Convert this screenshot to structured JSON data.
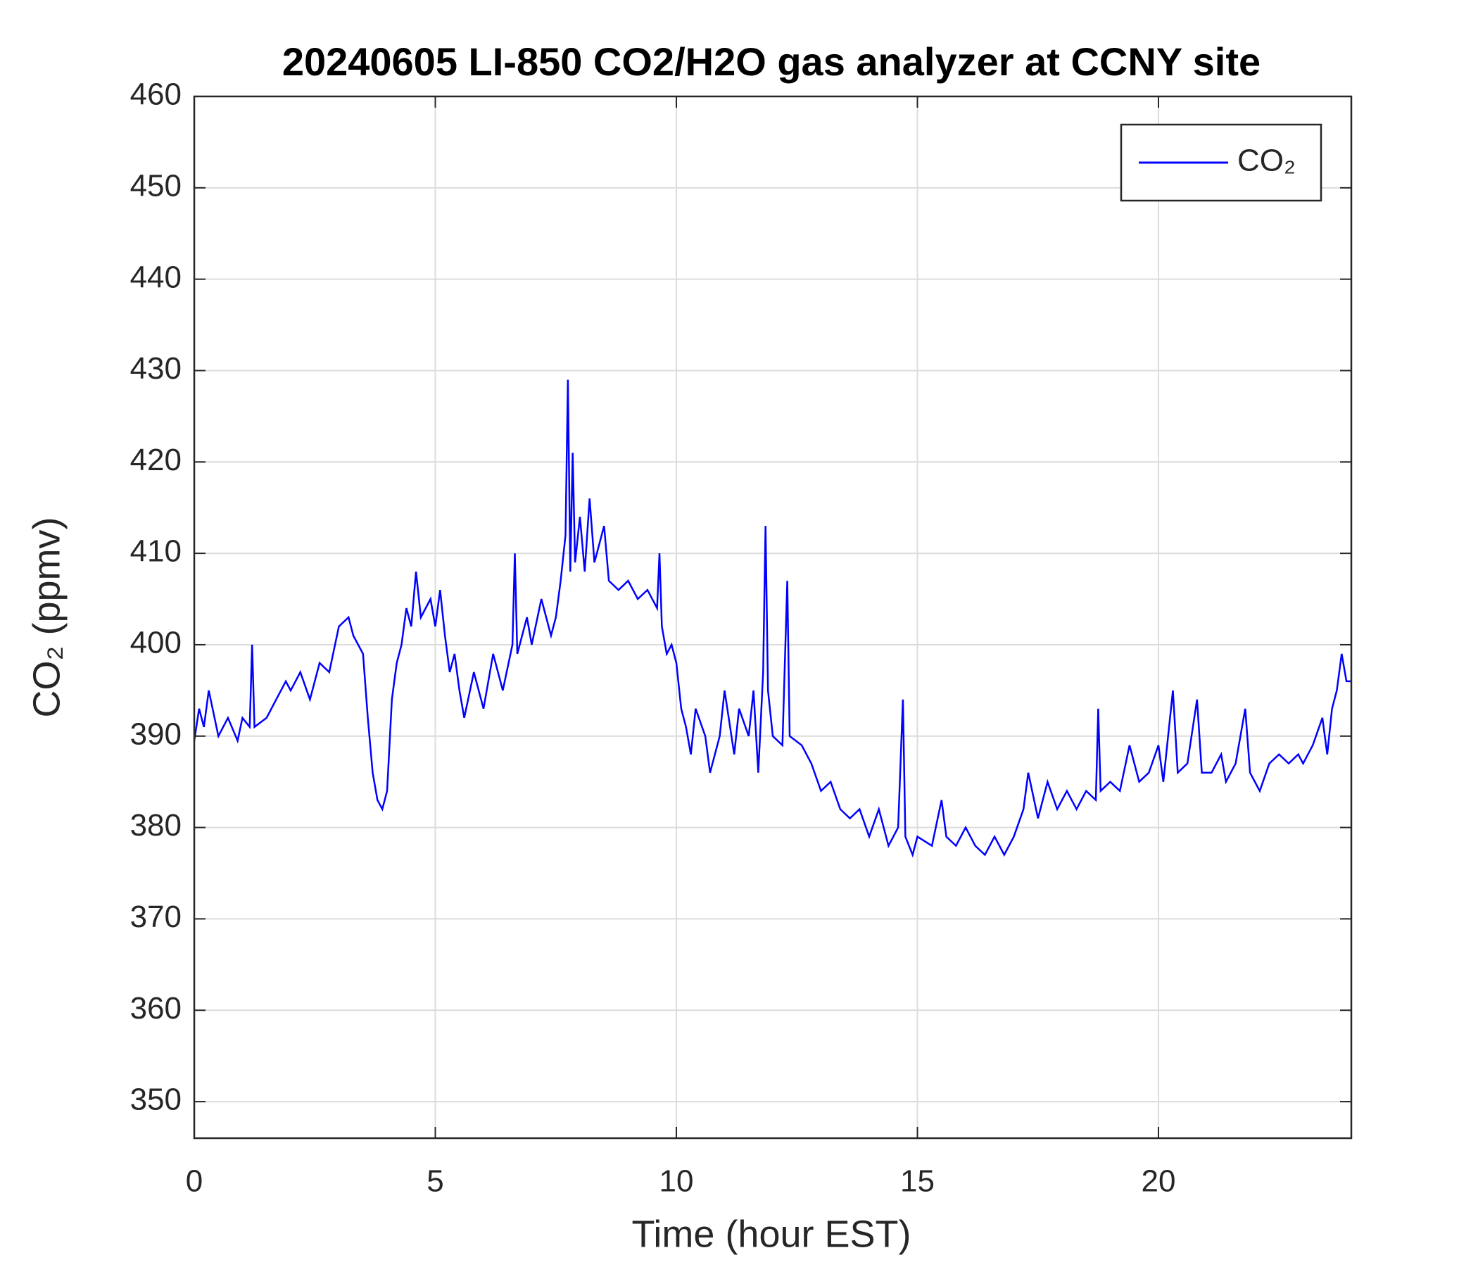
{
  "chart_data": {
    "type": "line",
    "title": "20240605 LI-850 CO2/H2O gas analyzer at CCNY site",
    "x_label": "Time (hour EST)",
    "y_label": "CO₂ (ppmv)",
    "xlim": [
      0,
      24
    ],
    "xticks": [
      0,
      5,
      10,
      15,
      20
    ],
    "ylim": [
      346,
      460
    ],
    "yticks": [
      350,
      360,
      370,
      380,
      390,
      400,
      410,
      420,
      430,
      440,
      450,
      460
    ],
    "grid": true,
    "legend": "upper right",
    "series": [
      {
        "name": "CO₂",
        "color": "#0000ff",
        "x": [
          0,
          0.1,
          0.2,
          0.3,
          0.5,
          0.7,
          0.9,
          1.0,
          1.15,
          1.2,
          1.25,
          1.5,
          1.7,
          1.9,
          2.0,
          2.2,
          2.4,
          2.6,
          2.8,
          3.0,
          3.2,
          3.3,
          3.5,
          3.6,
          3.7,
          3.8,
          3.9,
          4.0,
          4.1,
          4.2,
          4.3,
          4.4,
          4.5,
          4.6,
          4.7,
          4.9,
          5.0,
          5.1,
          5.2,
          5.3,
          5.4,
          5.5,
          5.6,
          5.8,
          6.0,
          6.2,
          6.4,
          6.6,
          6.65,
          6.7,
          6.9,
          7.0,
          7.2,
          7.4,
          7.5,
          7.6,
          7.7,
          7.75,
          7.8,
          7.85,
          7.9,
          8.0,
          8.1,
          8.2,
          8.3,
          8.5,
          8.6,
          8.8,
          9.0,
          9.2,
          9.4,
          9.6,
          9.65,
          9.7,
          9.8,
          9.9,
          10.0,
          10.1,
          10.2,
          10.3,
          10.4,
          10.6,
          10.7,
          10.9,
          11.0,
          11.2,
          11.3,
          11.5,
          11.6,
          11.7,
          11.8,
          11.85,
          11.9,
          12.0,
          12.2,
          12.3,
          12.35,
          12.6,
          12.8,
          13.0,
          13.2,
          13.4,
          13.6,
          13.8,
          14.0,
          14.2,
          14.4,
          14.6,
          14.7,
          14.75,
          14.9,
          15.0,
          15.3,
          15.5,
          15.6,
          15.8,
          16.0,
          16.2,
          16.4,
          16.6,
          16.8,
          17.0,
          17.2,
          17.3,
          17.5,
          17.7,
          17.9,
          18.1,
          18.3,
          18.5,
          18.7,
          18.75,
          18.8,
          19.0,
          19.2,
          19.4,
          19.6,
          19.8,
          20.0,
          20.1,
          20.3,
          20.4,
          20.6,
          20.8,
          20.9,
          21.1,
          21.3,
          21.4,
          21.6,
          21.8,
          21.9,
          22.1,
          22.3,
          22.5,
          22.7,
          22.9,
          23.0,
          23.2,
          23.4,
          23.5,
          23.6,
          23.7,
          23.8,
          23.9,
          24.0
        ],
        "values": [
          389.5,
          393,
          391,
          395,
          390,
          392,
          389.5,
          392,
          391,
          400,
          391,
          392,
          394,
          396,
          395,
          397,
          394,
          398,
          397,
          402,
          403,
          401,
          399,
          392,
          386,
          383,
          382,
          384,
          394,
          398,
          400,
          404,
          402,
          408,
          403,
          405,
          402,
          406,
          401,
          397,
          399,
          395,
          392,
          397,
          393,
          399,
          395,
          400,
          410,
          399,
          403,
          400,
          405,
          401,
          403,
          407,
          412,
          429,
          408,
          421,
          409,
          414,
          408,
          416,
          409,
          413,
          407,
          406,
          407,
          405,
          406,
          404,
          410,
          402,
          399,
          400,
          398,
          393,
          391,
          388,
          393,
          390,
          386,
          390,
          395,
          388,
          393,
          390,
          395,
          386,
          397,
          413,
          395,
          390,
          389,
          407,
          390,
          389,
          387,
          384,
          385,
          382,
          381,
          382,
          379,
          382,
          378,
          380,
          394,
          379,
          377,
          379,
          378,
          383,
          379,
          378,
          380,
          378,
          377,
          379,
          377,
          379,
          382,
          386,
          381,
          385,
          382,
          384,
          382,
          384,
          383,
          393,
          384,
          385,
          384,
          389,
          385,
          386,
          389,
          385,
          395,
          386,
          387,
          394,
          386,
          386,
          388,
          385,
          387,
          393,
          386,
          384,
          387,
          388,
          387,
          388,
          387,
          389,
          392,
          388,
          393,
          395,
          399,
          396,
          396
        ]
      }
    ]
  }
}
